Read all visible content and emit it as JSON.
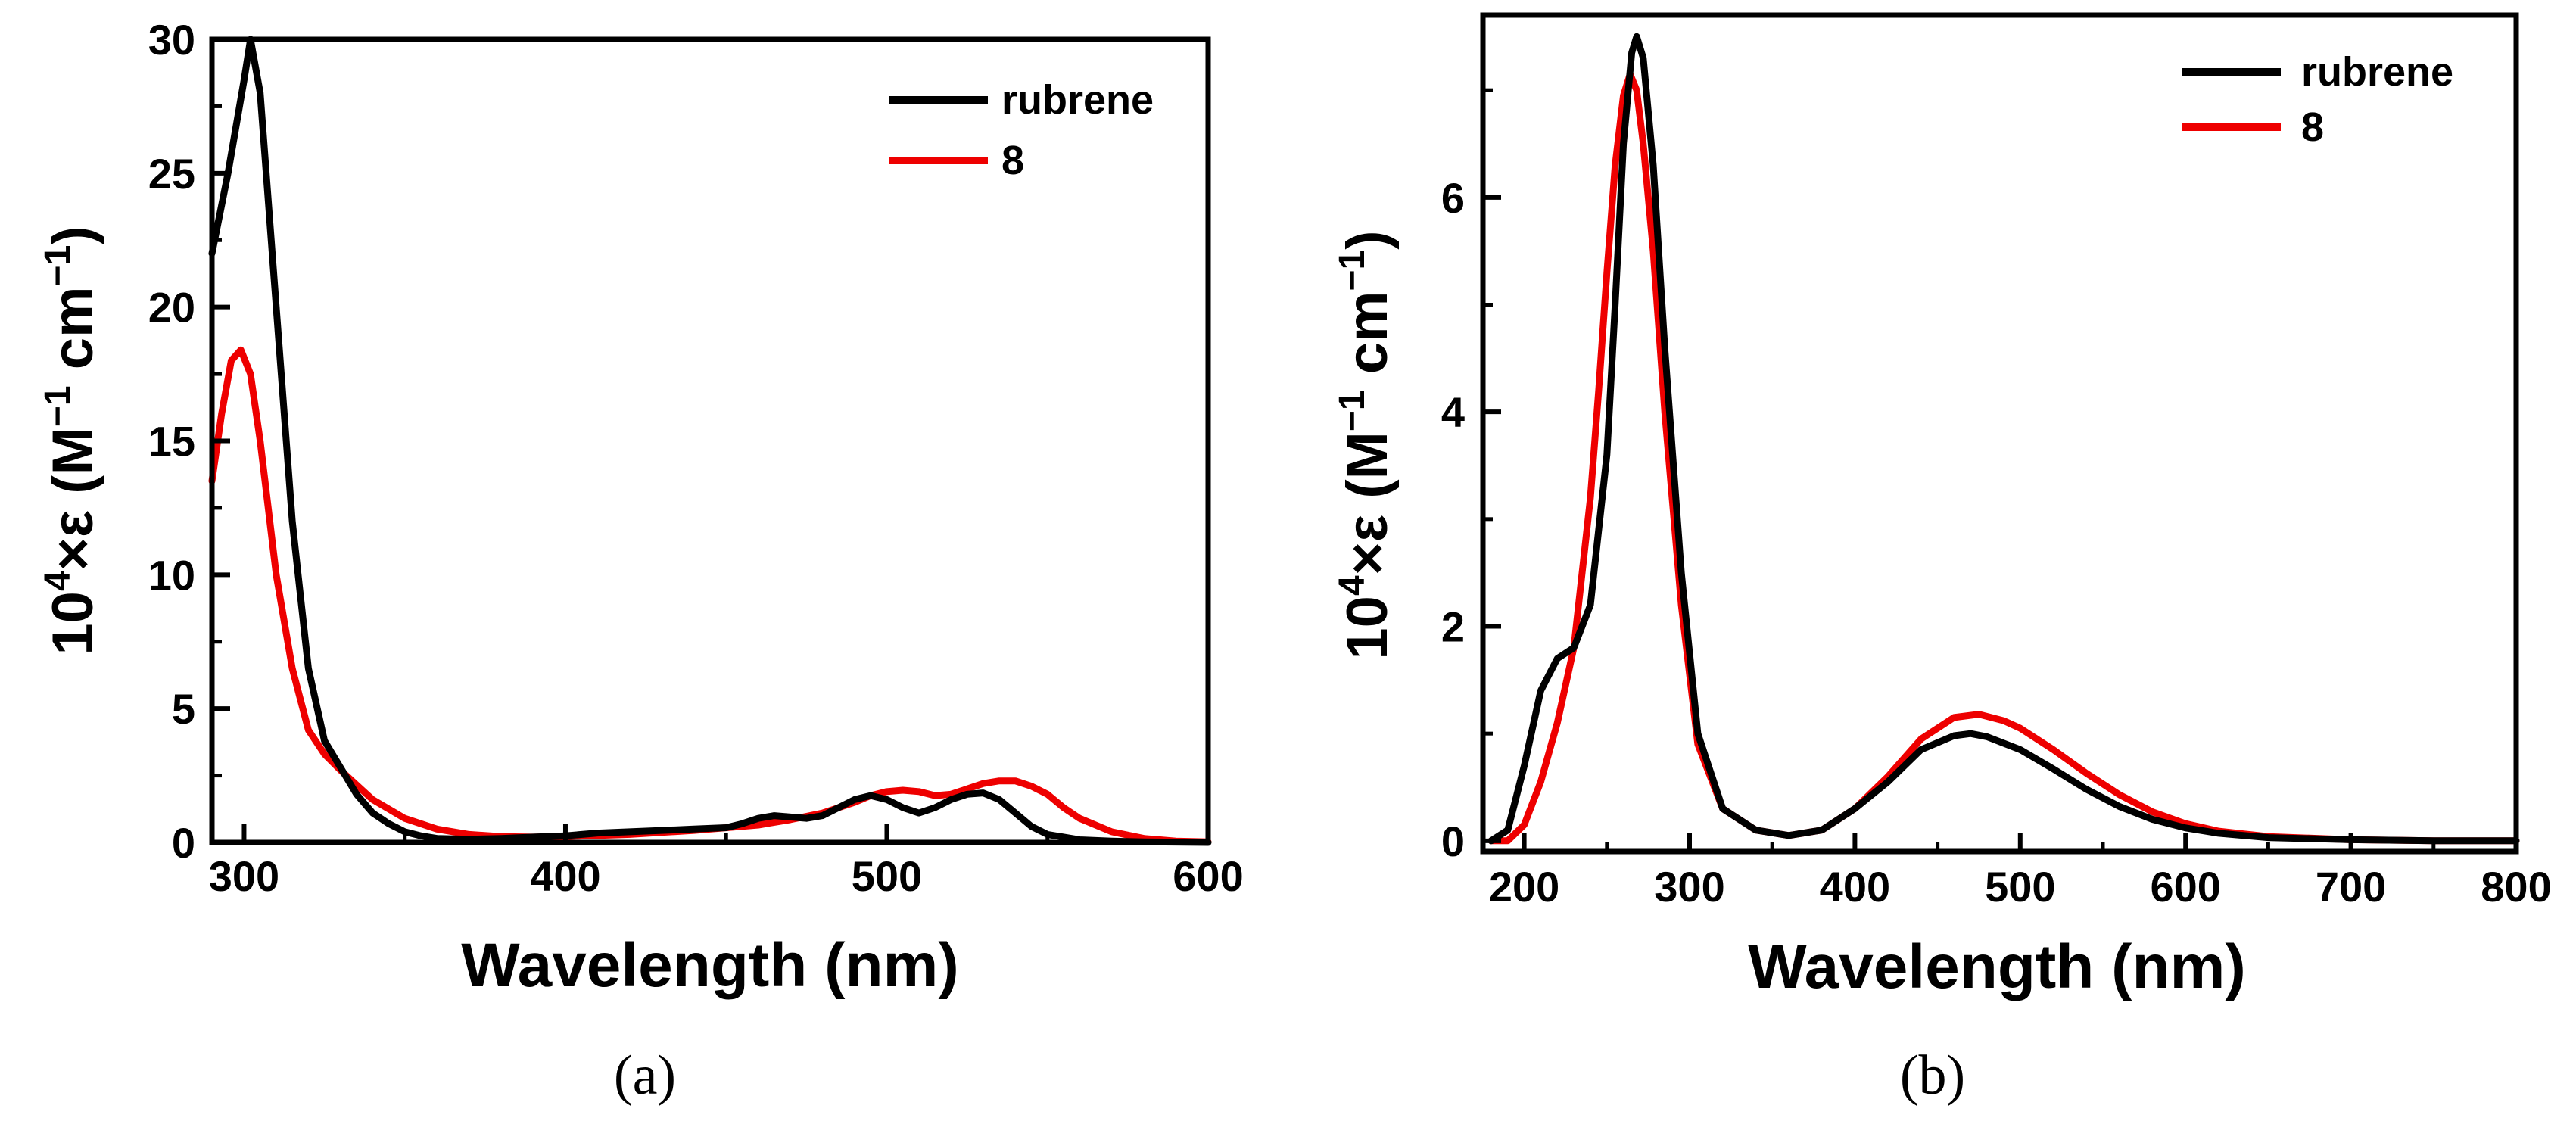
{
  "chart_data": [
    {
      "type": "line",
      "caption": "(a)",
      "xlabel": "Wavelength (nm)",
      "ylabel_main": "10",
      "ylabel_sup": "4",
      "ylabel_rest": "×ε (M",
      "ylabel_sup2": "−1",
      "ylabel_mid": " cm",
      "ylabel_sup3": "−1",
      "ylabel_end": ")",
      "xlim": [
        290,
        600
      ],
      "ylim": [
        0,
        30
      ],
      "xticks": [
        300,
        400,
        500,
        600
      ],
      "yticks": [
        0,
        5,
        10,
        15,
        20,
        25,
        30
      ],
      "legend_position": "top-right",
      "series": [
        {
          "name": "rubrene",
          "color": "#000000",
          "x": [
            290,
            295,
            300,
            302,
            305,
            310,
            315,
            320,
            325,
            330,
            335,
            340,
            345,
            350,
            355,
            360,
            370,
            380,
            390,
            400,
            410,
            420,
            430,
            440,
            450,
            455,
            460,
            465,
            470,
            475,
            480,
            485,
            490,
            495,
            500,
            505,
            510,
            515,
            520,
            525,
            530,
            535,
            540,
            545,
            550,
            560,
            570,
            580,
            590,
            600
          ],
          "y": [
            22,
            25,
            28.5,
            30,
            28,
            20,
            12,
            6.5,
            3.8,
            2.8,
            1.8,
            1.1,
            0.7,
            0.4,
            0.25,
            0.15,
            0.12,
            0.15,
            0.2,
            0.25,
            0.35,
            0.4,
            0.45,
            0.5,
            0.55,
            0.7,
            0.9,
            1.0,
            0.95,
            0.9,
            1.0,
            1.3,
            1.6,
            1.75,
            1.6,
            1.3,
            1.1,
            1.3,
            1.6,
            1.8,
            1.85,
            1.6,
            1.1,
            0.6,
            0.3,
            0.1,
            0.05,
            0.02,
            0.01,
            0
          ]
        },
        {
          "name": "8",
          "color": "#ee0000",
          "x": [
            290,
            293,
            296,
            299,
            302,
            305,
            310,
            315,
            320,
            325,
            330,
            340,
            350,
            360,
            370,
            380,
            390,
            400,
            420,
            440,
            460,
            470,
            480,
            490,
            495,
            500,
            505,
            510,
            515,
            520,
            525,
            530,
            535,
            540,
            545,
            550,
            555,
            560,
            570,
            580,
            590,
            600
          ],
          "y": [
            13.5,
            16,
            18,
            18.4,
            17.5,
            15,
            10,
            6.5,
            4.2,
            3.3,
            2.7,
            1.6,
            0.9,
            0.5,
            0.3,
            0.22,
            0.2,
            0.22,
            0.3,
            0.45,
            0.65,
            0.85,
            1.1,
            1.5,
            1.75,
            1.9,
            1.95,
            1.9,
            1.75,
            1.8,
            2.0,
            2.2,
            2.3,
            2.3,
            2.1,
            1.8,
            1.3,
            0.9,
            0.4,
            0.15,
            0.05,
            0.02
          ]
        }
      ]
    },
    {
      "type": "line",
      "caption": "(b)",
      "xlabel": "Wavelength (nm)",
      "ylabel_main": "10",
      "ylabel_sup": "4",
      "ylabel_rest": "×ε (M",
      "ylabel_sup2": "−1",
      "ylabel_mid": " cm",
      "ylabel_sup3": "−1",
      "ylabel_end": ")",
      "xlim": [
        175,
        800
      ],
      "ylim": [
        -0.1,
        7.7
      ],
      "xticks": [
        200,
        300,
        400,
        500,
        600,
        700,
        800
      ],
      "yticks": [
        0,
        2,
        4,
        6
      ],
      "legend_position": "top-right",
      "series": [
        {
          "name": "rubrene",
          "color": "#000000",
          "x": [
            180,
            190,
            200,
            210,
            220,
            230,
            240,
            250,
            255,
            260,
            265,
            268,
            272,
            278,
            285,
            295,
            305,
            320,
            340,
            360,
            380,
            400,
            420,
            440,
            460,
            470,
            480,
            500,
            520,
            540,
            560,
            580,
            600,
            620,
            650,
            700,
            750,
            800
          ],
          "y": [
            0.0,
            0.1,
            0.7,
            1.4,
            1.7,
            1.8,
            2.2,
            3.6,
            5.0,
            6.5,
            7.35,
            7.5,
            7.3,
            6.3,
            4.6,
            2.5,
            1.0,
            0.3,
            0.1,
            0.05,
            0.1,
            0.3,
            0.55,
            0.85,
            0.98,
            1.0,
            0.97,
            0.85,
            0.67,
            0.48,
            0.32,
            0.2,
            0.12,
            0.07,
            0.03,
            0.01,
            0.0,
            0.0
          ]
        },
        {
          "name": "8",
          "color": "#ee0000",
          "x": [
            180,
            190,
            200,
            210,
            220,
            230,
            240,
            245,
            250,
            255,
            260,
            264,
            268,
            272,
            278,
            285,
            295,
            305,
            320,
            340,
            360,
            380,
            400,
            420,
            440,
            460,
            475,
            490,
            500,
            520,
            540,
            560,
            580,
            600,
            620,
            650,
            700,
            750,
            800
          ],
          "y": [
            0.0,
            0.0,
            0.15,
            0.55,
            1.1,
            1.8,
            3.2,
            4.2,
            5.3,
            6.3,
            6.95,
            7.15,
            7.0,
            6.5,
            5.5,
            4.0,
            2.2,
            0.9,
            0.3,
            0.1,
            0.05,
            0.1,
            0.3,
            0.6,
            0.95,
            1.15,
            1.18,
            1.12,
            1.05,
            0.85,
            0.63,
            0.43,
            0.27,
            0.16,
            0.09,
            0.04,
            0.01,
            0.0,
            0.0
          ]
        }
      ]
    }
  ]
}
